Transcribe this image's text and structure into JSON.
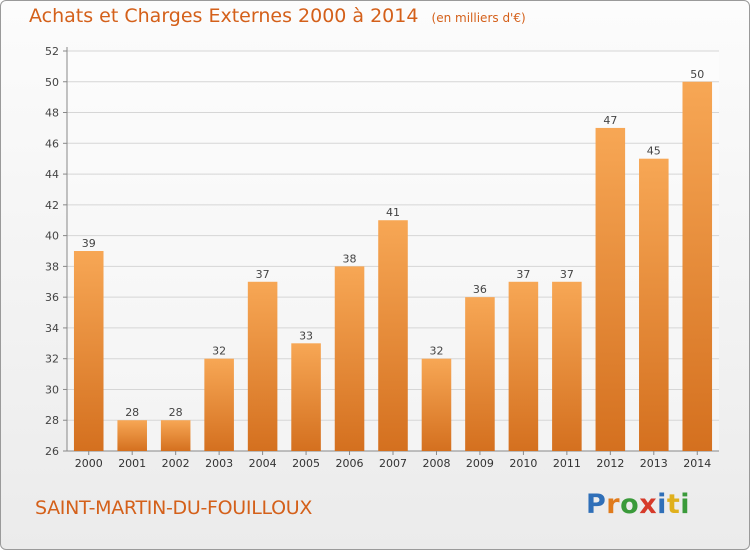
{
  "chart_data": {
    "type": "bar",
    "title": "Achats et Charges Externes 2000 à 2014",
    "subtitle": "(en milliers d'€)",
    "categories": [
      "2000",
      "2001",
      "2002",
      "2003",
      "2004",
      "2005",
      "2006",
      "2007",
      "2008",
      "2009",
      "2010",
      "2011",
      "2012",
      "2013",
      "2014"
    ],
    "values": [
      39,
      28,
      28,
      32,
      37,
      33,
      38,
      41,
      32,
      36,
      37,
      37,
      47,
      45,
      50
    ],
    "ylim": [
      26,
      52
    ],
    "yticks": [
      26,
      28,
      30,
      32,
      34,
      36,
      38,
      40,
      42,
      44,
      46,
      48,
      50,
      52
    ],
    "xlabel": "",
    "ylabel": "",
    "grid": true,
    "data_labels": true,
    "colors": {
      "bar_light": "#f7a755",
      "bar_dark": "#d4701f",
      "text": "#d4601a"
    }
  },
  "footer": {
    "commune": "SAINT-MARTIN-DU-FOUILLOUX"
  },
  "logo": {
    "text": "Proxiti",
    "letter_colors": [
      "#2f6fb8",
      "#e07b1c",
      "#3a9a3a",
      "#d63a2a",
      "#2f6fb8",
      "#e0b01c",
      "#3a9a3a"
    ]
  }
}
